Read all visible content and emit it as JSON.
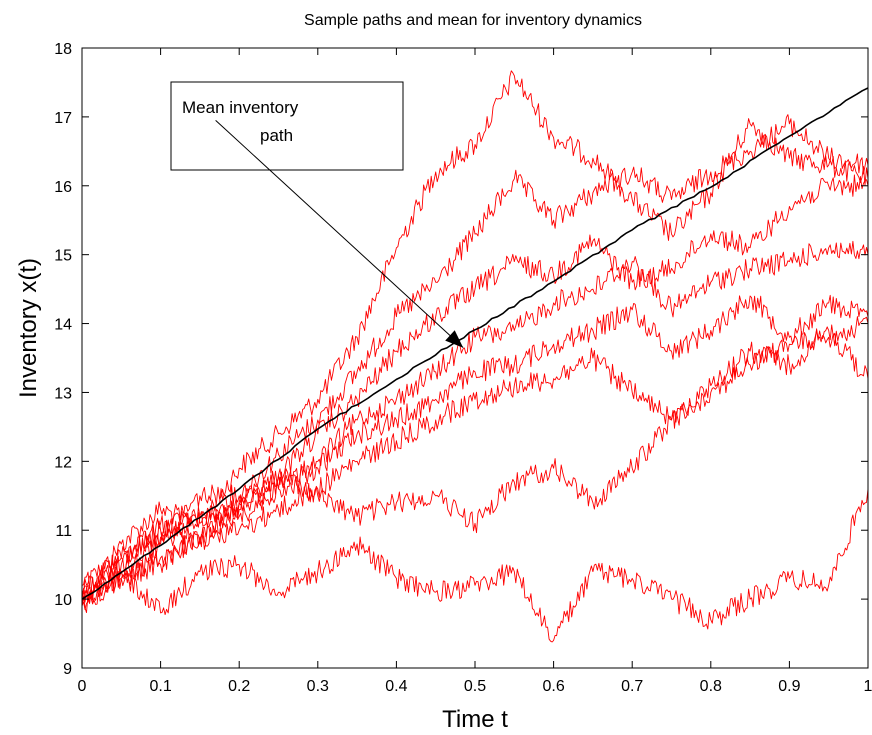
{
  "chart_data": {
    "type": "line",
    "title": "Sample paths and mean for inventory dynamics",
    "xlabel": "Time t",
    "ylabel": "Inventory x(t)",
    "xlim": [
      0,
      1
    ],
    "ylim": [
      9,
      18
    ],
    "xticks": [
      0,
      0.1,
      0.2,
      0.3,
      0.4,
      0.5,
      0.6,
      0.7,
      0.8,
      0.9,
      1
    ],
    "yticks": [
      9,
      10,
      11,
      12,
      13,
      14,
      15,
      16,
      17,
      18
    ],
    "grid": false,
    "annotation": {
      "lines": [
        "Mean inventory",
        "path"
      ],
      "arrow_from": [
        0.17,
        16.95
      ],
      "arrow_to": [
        0.485,
        13.65
      ]
    },
    "series": [
      {
        "color": "#000000",
        "x": [
          0,
          0.1,
          0.2,
          0.3,
          0.4,
          0.5,
          0.6,
          0.7,
          0.8,
          0.9,
          1.0
        ],
        "y": [
          10.0,
          10.78,
          11.6,
          12.47,
          13.19,
          13.91,
          14.61,
          15.36,
          15.98,
          16.72,
          17.42
        ]
      },
      {
        "color": "#ff0000",
        "x": [
          0,
          0.05,
          0.1,
          0.15,
          0.2,
          0.25,
          0.3,
          0.35,
          0.4,
          0.45,
          0.5,
          0.55,
          0.6,
          0.65,
          0.7,
          0.75,
          0.8,
          0.85,
          0.9,
          0.95,
          1.0
        ],
        "y": [
          10.0,
          10.8,
          11.3,
          11.1,
          11.9,
          12.4,
          12.9,
          13.8,
          15.1,
          16.2,
          16.6,
          17.6,
          16.7,
          16.4,
          15.8,
          15.3,
          15.9,
          16.9,
          16.4,
          16.3,
          16.1
        ]
      },
      {
        "color": "#ff0000",
        "x": [
          0,
          0.05,
          0.1,
          0.15,
          0.2,
          0.25,
          0.3,
          0.35,
          0.4,
          0.45,
          0.5,
          0.55,
          0.6,
          0.65,
          0.7,
          0.75,
          0.8,
          0.85,
          0.9,
          0.95,
          1.0
        ],
        "y": [
          10.1,
          10.6,
          10.9,
          11.5,
          11.5,
          12.1,
          12.6,
          13.3,
          14.1,
          14.6,
          15.3,
          16.1,
          15.5,
          15.9,
          16.2,
          15.8,
          16.2,
          16.5,
          16.9,
          16.4,
          16.3
        ]
      },
      {
        "color": "#ff0000",
        "x": [
          0,
          0.05,
          0.1,
          0.15,
          0.2,
          0.25,
          0.3,
          0.35,
          0.4,
          0.45,
          0.5,
          0.55,
          0.6,
          0.65,
          0.7,
          0.75,
          0.8,
          0.85,
          0.9,
          0.95,
          1.0
        ],
        "y": [
          9.9,
          10.4,
          10.8,
          11.2,
          11.3,
          11.8,
          12.4,
          12.9,
          13.6,
          14.1,
          14.5,
          14.9,
          14.7,
          15.2,
          14.6,
          14.8,
          15.3,
          15.1,
          15.7,
          16.0,
          16.0
        ]
      },
      {
        "color": "#ff0000",
        "x": [
          0,
          0.05,
          0.1,
          0.15,
          0.2,
          0.25,
          0.3,
          0.35,
          0.4,
          0.45,
          0.5,
          0.55,
          0.6,
          0.65,
          0.7,
          0.75,
          0.8,
          0.85,
          0.9,
          0.95,
          1.0
        ],
        "y": [
          10.0,
          10.5,
          11.1,
          10.8,
          11.4,
          11.6,
          12.0,
          12.6,
          12.9,
          13.3,
          13.8,
          13.9,
          14.3,
          14.5,
          14.9,
          14.2,
          14.6,
          14.8,
          14.9,
          15.1,
          15.0
        ]
      },
      {
        "color": "#ff0000",
        "x": [
          0,
          0.05,
          0.1,
          0.15,
          0.2,
          0.25,
          0.3,
          0.35,
          0.4,
          0.45,
          0.5,
          0.55,
          0.6,
          0.65,
          0.7,
          0.75,
          0.8,
          0.85,
          0.9,
          0.95,
          1.0
        ],
        "y": [
          10.2,
          10.6,
          11.0,
          11.2,
          11.2,
          11.6,
          11.9,
          12.4,
          12.6,
          12.9,
          13.3,
          13.4,
          13.7,
          13.9,
          14.2,
          13.6,
          13.9,
          14.4,
          13.8,
          14.3,
          14.1
        ]
      },
      {
        "color": "#ff0000",
        "x": [
          0,
          0.05,
          0.1,
          0.15,
          0.2,
          0.25,
          0.3,
          0.35,
          0.4,
          0.45,
          0.5,
          0.55,
          0.6,
          0.65,
          0.7,
          0.75,
          0.8,
          0.85,
          0.9,
          0.95,
          1.0
        ],
        "y": [
          9.9,
          10.3,
          10.6,
          10.9,
          11.0,
          11.3,
          11.6,
          12.0,
          12.3,
          12.6,
          12.9,
          13.1,
          13.2,
          13.5,
          13.0,
          12.6,
          13.0,
          13.4,
          13.7,
          13.8,
          14.0
        ]
      },
      {
        "color": "#ff0000",
        "x": [
          0,
          0.05,
          0.1,
          0.15,
          0.2,
          0.25,
          0.3,
          0.35,
          0.4,
          0.45,
          0.5,
          0.55,
          0.6,
          0.65,
          0.7,
          0.75,
          0.8,
          0.85,
          0.9,
          0.95,
          1.0
        ],
        "y": [
          10.1,
          10.3,
          10.5,
          10.9,
          11.4,
          11.8,
          11.5,
          11.2,
          11.4,
          11.5,
          11.1,
          11.7,
          11.9,
          11.4,
          11.9,
          12.6,
          13.1,
          13.6,
          13.4,
          13.9,
          13.2
        ]
      },
      {
        "color": "#ff0000",
        "x": [
          0,
          0.05,
          0.1,
          0.15,
          0.2,
          0.25,
          0.3,
          0.35,
          0.4,
          0.45,
          0.5,
          0.55,
          0.6,
          0.65,
          0.7,
          0.75,
          0.8,
          0.85,
          0.9,
          0.95,
          1.0
        ],
        "y": [
          10.0,
          10.4,
          9.8,
          10.4,
          10.5,
          10.1,
          10.4,
          10.8,
          10.3,
          10.1,
          10.2,
          10.4,
          9.4,
          10.4,
          10.3,
          10.0,
          9.7,
          10.0,
          10.3,
          10.2,
          11.6
        ]
      }
    ]
  }
}
